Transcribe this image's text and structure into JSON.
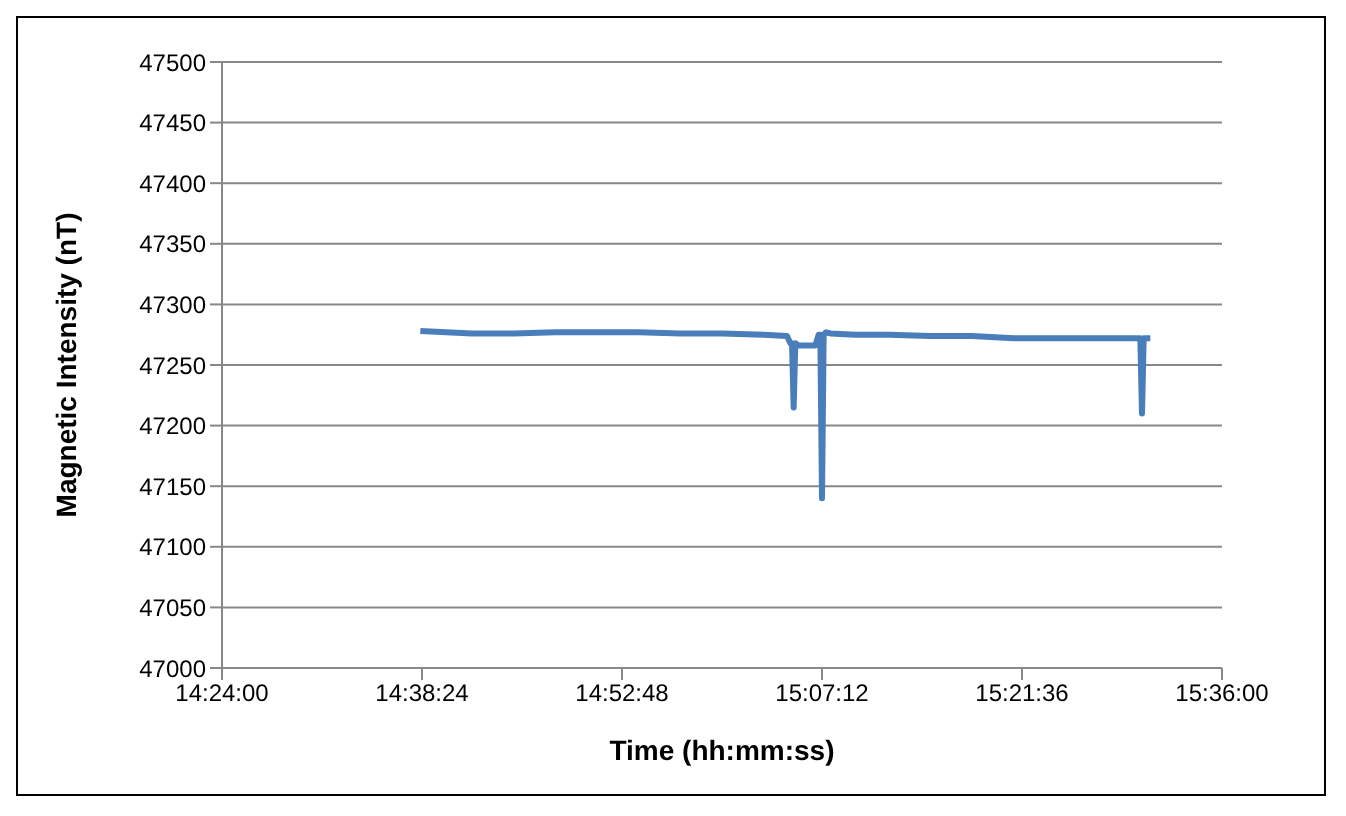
{
  "chart_data": {
    "type": "line",
    "xlabel": "Time (hh:mm:ss)",
    "ylabel": "Magnetic Intensity (nT)",
    "x": [
      14.638,
      14.7,
      14.75,
      14.8,
      14.85,
      14.9,
      14.95,
      15.0,
      15.05,
      15.078,
      15.082,
      15.084,
      15.086,
      15.088,
      15.092,
      15.1,
      15.112,
      15.116,
      15.118,
      15.12,
      15.122,
      15.125,
      15.13,
      15.16,
      15.2,
      15.25,
      15.3,
      15.35,
      15.4,
      15.45,
      15.5,
      15.502,
      15.504,
      15.506,
      15.514
    ],
    "series": [
      {
        "color": "#4a7ebb",
        "values": [
          47278,
          47276,
          47276,
          47277,
          47277,
          47277,
          47276,
          47276,
          47275,
          47274,
          47268,
          47268,
          47215,
          47268,
          47266,
          47266,
          47266,
          47275,
          47275,
          47140,
          47275,
          47277,
          47276,
          47275,
          47275,
          47274,
          47274,
          47272,
          47272,
          47272,
          47272,
          47272,
          47210,
          47272,
          47272
        ]
      }
    ],
    "xlim": [
      14.4,
      15.6
    ],
    "xticks": [
      {
        "value": 14.4,
        "label": "14:24:00"
      },
      {
        "value": 14.64,
        "label": "14:38:24"
      },
      {
        "value": 14.88,
        "label": "14:52:48"
      },
      {
        "value": 15.12,
        "label": "15:07:12"
      },
      {
        "value": 15.36,
        "label": "15:21:36"
      },
      {
        "value": 15.6,
        "label": "15:36:00"
      }
    ],
    "ylim": [
      47000,
      47500
    ],
    "yticks": [
      47000,
      47050,
      47100,
      47150,
      47200,
      47250,
      47300,
      47350,
      47400,
      47450,
      47500
    ],
    "grid": "y",
    "legend": false,
    "marker": "none",
    "line_style": "solid"
  }
}
